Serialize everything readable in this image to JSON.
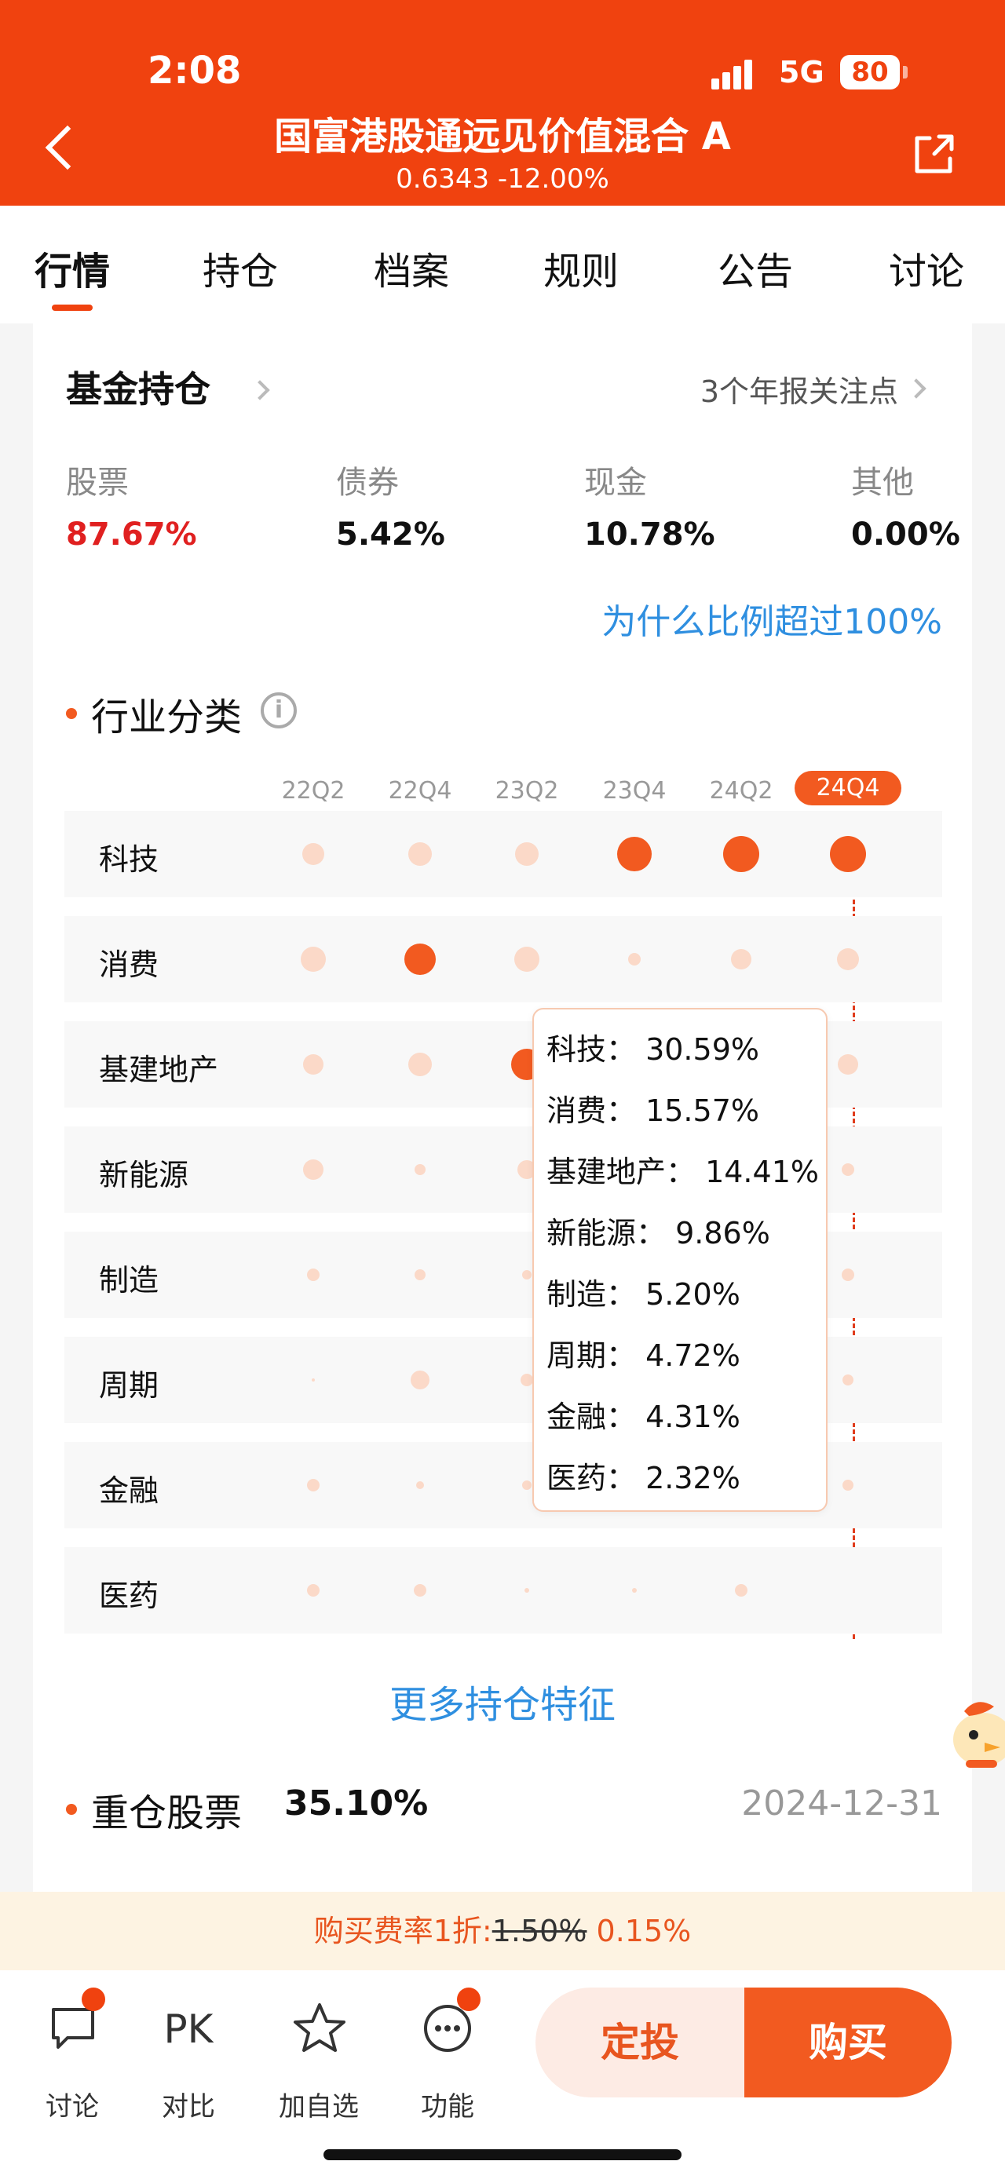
{
  "status": {
    "time": "2:08",
    "network": "5G",
    "battery": "80"
  },
  "header": {
    "title": "国富港股通远见价值混合 A",
    "subtitle": "0.6343 -12.00%"
  },
  "tabs": [
    {
      "label": "行情"
    },
    {
      "label": "持仓"
    },
    {
      "label": "档案"
    },
    {
      "label": "规则"
    },
    {
      "label": "公告"
    },
    {
      "label": "讨论"
    }
  ],
  "holdings": {
    "title": "基金持仓",
    "notice": "3个年报关注点",
    "allocation": [
      {
        "label": "股票",
        "value": "87.67%",
        "color": "#e02020"
      },
      {
        "label": "债券",
        "value": "5.42%",
        "color": "#111111"
      },
      {
        "label": "现金",
        "value": "10.78%",
        "color": "#111111"
      },
      {
        "label": "其他",
        "value": "0.00%",
        "color": "#111111"
      }
    ],
    "why_link": "为什么比例超过100%"
  },
  "industry": {
    "title": "行业分类",
    "info_icon": "i",
    "more_link": "更多持仓特征"
  },
  "chart_data": {
    "type": "bubble-matrix",
    "quarters": [
      "22Q2",
      "22Q4",
      "23Q2",
      "23Q4",
      "24Q2",
      "24Q4"
    ],
    "selected_quarter": "24Q4",
    "industries": [
      "科技",
      "消费",
      "基建地产",
      "新能源",
      "制造",
      "周期",
      "金融",
      "医药"
    ],
    "tooltip": [
      {
        "text": "科技： 30.59%"
      },
      {
        "text": "消费： 15.57%"
      },
      {
        "text": "基建地产： 14.41%"
      },
      {
        "text": "新能源： 9.86%"
      },
      {
        "text": "制造： 5.20%"
      },
      {
        "text": "周期： 4.72%"
      },
      {
        "text": "金融： 4.31%"
      },
      {
        "text": "医药： 2.32%"
      }
    ],
    "colors": {
      "highlight": "#f25a20",
      "dim": "#fbd9c8"
    }
  },
  "heavy": {
    "title": "重仓股票",
    "value": "35.10%",
    "date": "2024-12-31"
  },
  "fee": {
    "prefix": "购买费率1折:",
    "original": "1.50%",
    "current": "0.15%"
  },
  "bottom": {
    "items": [
      {
        "label": "讨论"
      },
      {
        "label": "对比",
        "glyph": "PK"
      },
      {
        "label": "加自选"
      },
      {
        "label": "功能"
      }
    ],
    "plan_button": "定投",
    "buy_button": "购买"
  }
}
